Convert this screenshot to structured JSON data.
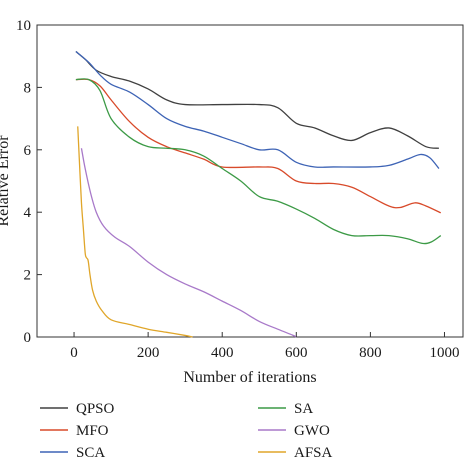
{
  "chart_data": {
    "type": "line",
    "xlabel": "Number of iterations",
    "ylabel": "Relative Error",
    "xlim": [
      -100,
      1050
    ],
    "ylim": [
      0,
      10
    ],
    "xticks": [
      0,
      200,
      400,
      600,
      800,
      1000
    ],
    "yticks": [
      0,
      2,
      4,
      6,
      8,
      10
    ],
    "grid": false,
    "legend_position": "bottom",
    "series": [
      {
        "name": "QPSO",
        "color": "#404040",
        "points": [
          [
            5,
            9.15
          ],
          [
            30,
            8.9
          ],
          [
            60,
            8.55
          ],
          [
            100,
            8.35
          ],
          [
            150,
            8.2
          ],
          [
            200,
            7.95
          ],
          [
            250,
            7.6
          ],
          [
            300,
            7.45
          ],
          [
            400,
            7.45
          ],
          [
            500,
            7.45
          ],
          [
            550,
            7.35
          ],
          [
            600,
            6.85
          ],
          [
            650,
            6.7
          ],
          [
            700,
            6.45
          ],
          [
            750,
            6.3
          ],
          [
            800,
            6.55
          ],
          [
            850,
            6.7
          ],
          [
            900,
            6.45
          ],
          [
            950,
            6.1
          ],
          [
            985,
            6.05
          ]
        ]
      },
      {
        "name": "MFO",
        "color": "#d84a2a",
        "points": [
          [
            5,
            8.25
          ],
          [
            40,
            8.25
          ],
          [
            70,
            8.05
          ],
          [
            100,
            7.6
          ],
          [
            150,
            6.9
          ],
          [
            200,
            6.4
          ],
          [
            250,
            6.1
          ],
          [
            300,
            5.9
          ],
          [
            350,
            5.7
          ],
          [
            400,
            5.45
          ],
          [
            500,
            5.45
          ],
          [
            550,
            5.4
          ],
          [
            600,
            5.0
          ],
          [
            650,
            4.92
          ],
          [
            700,
            4.92
          ],
          [
            750,
            4.8
          ],
          [
            800,
            4.5
          ],
          [
            850,
            4.2
          ],
          [
            880,
            4.15
          ],
          [
            920,
            4.3
          ],
          [
            950,
            4.2
          ],
          [
            990,
            3.98
          ]
        ]
      },
      {
        "name": "SCA",
        "color": "#3d63b5",
        "points": [
          [
            5,
            9.15
          ],
          [
            40,
            8.8
          ],
          [
            70,
            8.4
          ],
          [
            100,
            8.1
          ],
          [
            150,
            7.85
          ],
          [
            200,
            7.45
          ],
          [
            250,
            7.0
          ],
          [
            300,
            6.75
          ],
          [
            350,
            6.6
          ],
          [
            400,
            6.4
          ],
          [
            450,
            6.2
          ],
          [
            500,
            6.0
          ],
          [
            550,
            6.0
          ],
          [
            600,
            5.6
          ],
          [
            650,
            5.45
          ],
          [
            700,
            5.45
          ],
          [
            800,
            5.45
          ],
          [
            850,
            5.5
          ],
          [
            900,
            5.7
          ],
          [
            935,
            5.85
          ],
          [
            960,
            5.75
          ],
          [
            985,
            5.4
          ]
        ]
      },
      {
        "name": "SA",
        "color": "#3c9a46",
        "points": [
          [
            5,
            8.25
          ],
          [
            40,
            8.25
          ],
          [
            70,
            7.9
          ],
          [
            100,
            7.0
          ],
          [
            150,
            6.4
          ],
          [
            200,
            6.1
          ],
          [
            250,
            6.05
          ],
          [
            300,
            6.0
          ],
          [
            350,
            5.8
          ],
          [
            400,
            5.4
          ],
          [
            450,
            5.0
          ],
          [
            500,
            4.5
          ],
          [
            550,
            4.35
          ],
          [
            600,
            4.1
          ],
          [
            650,
            3.8
          ],
          [
            700,
            3.45
          ],
          [
            750,
            3.25
          ],
          [
            800,
            3.25
          ],
          [
            850,
            3.25
          ],
          [
            900,
            3.15
          ],
          [
            940,
            3.0
          ],
          [
            965,
            3.05
          ],
          [
            990,
            3.25
          ]
        ]
      },
      {
        "name": "GWO",
        "color": "#a879c9",
        "points": [
          [
            20,
            6.05
          ],
          [
            30,
            5.4
          ],
          [
            45,
            4.6
          ],
          [
            60,
            4.0
          ],
          [
            80,
            3.55
          ],
          [
            110,
            3.2
          ],
          [
            150,
            2.9
          ],
          [
            200,
            2.4
          ],
          [
            250,
            2.0
          ],
          [
            300,
            1.7
          ],
          [
            350,
            1.45
          ],
          [
            400,
            1.15
          ],
          [
            450,
            0.85
          ],
          [
            500,
            0.5
          ],
          [
            550,
            0.25
          ],
          [
            590,
            0.06
          ],
          [
            600,
            0.0
          ]
        ]
      },
      {
        "name": "AFSA",
        "color": "#e0a62a",
        "points": [
          [
            10,
            6.75
          ],
          [
            15,
            5.5
          ],
          [
            20,
            4.3
          ],
          [
            25,
            3.5
          ],
          [
            30,
            2.7
          ],
          [
            33,
            2.55
          ],
          [
            38,
            2.45
          ],
          [
            43,
            2.0
          ],
          [
            50,
            1.5
          ],
          [
            60,
            1.15
          ],
          [
            75,
            0.85
          ],
          [
            100,
            0.55
          ],
          [
            150,
            0.4
          ],
          [
            200,
            0.25
          ],
          [
            250,
            0.15
          ],
          [
            300,
            0.05
          ],
          [
            320,
            0.0
          ]
        ]
      }
    ]
  }
}
